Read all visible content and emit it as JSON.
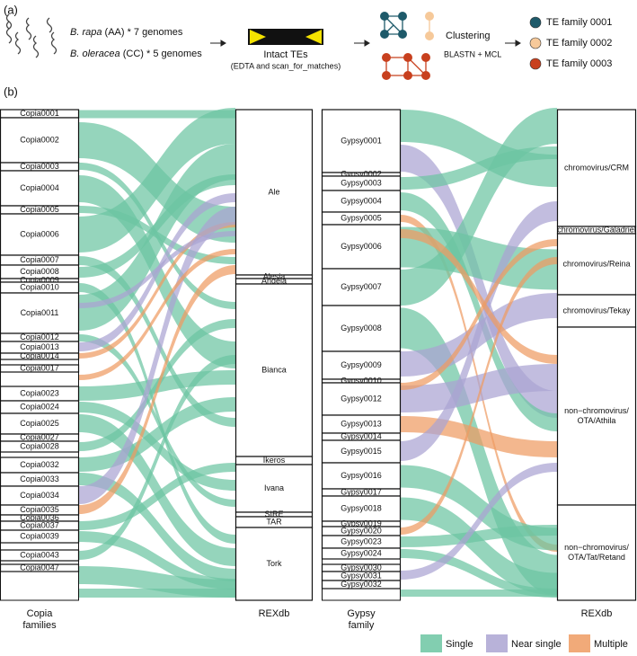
{
  "panel_a": {
    "label": "(a)",
    "genomes": [
      {
        "species": "B. rapa",
        "detail": "(AA) * 7 genomes"
      },
      {
        "species": "B. oleracea",
        "detail": "(CC) * 5 genomes"
      }
    ],
    "step1": {
      "title": "Intact TEs",
      "subtitle": "(EDTA and scan_for_matches)"
    },
    "step2": {
      "title": "Clustering",
      "subtitle": "BLASTN + MCL"
    },
    "families": [
      {
        "name": "TE family 0001",
        "color": "#1e5a6a"
      },
      {
        "name": "TE family 0002",
        "color": "#f6c99a"
      },
      {
        "name": "TE family 0003",
        "color": "#c8401e"
      }
    ]
  },
  "panel_b": {
    "label": "(b)",
    "columns": [
      {
        "axis_label": [
          "Copia",
          "families"
        ],
        "nodes": [
          "Copia0001",
          "Copia0002",
          "Copia0003",
          "Copia0004",
          "Copia0005",
          "Copia0006",
          "Copia0007",
          "Copia0008",
          "Copia0009",
          "Copia0010",
          "Copia0011",
          "Copia0012",
          "Copia0013",
          "Copia0014",
          "Copia0017",
          "Copia0023",
          "Copia0024",
          "Copia0025",
          "Copia0027",
          "Copia0028",
          "Copia0032",
          "Copia0033",
          "Copia0034",
          "Copia0035",
          "Copia0036",
          "Copia0037",
          "Copia0039",
          "Copia0043",
          "Copia0047"
        ]
      },
      {
        "axis_label": [
          "REXdb"
        ],
        "nodes": [
          "Ale",
          "Alesia",
          "Angela",
          "Bianca",
          "Ikeros",
          "Ivana",
          "SIRE",
          "TAR",
          "Tork"
        ]
      },
      {
        "axis_label": [
          "Gypsy",
          "family"
        ],
        "nodes": [
          "Gypsy0001",
          "Gypsy0002",
          "Gypsy0003",
          "Gypsy0004",
          "Gypsy0005",
          "Gypsy0006",
          "Gypsy0007",
          "Gypsy0008",
          "Gypsy0009",
          "Gypsy0010",
          "Gypsy0012",
          "Gypsy0013",
          "Gypsy0014",
          "Gypsy0015",
          "Gypsy0016",
          "Gypsy0017",
          "Gypsy0018",
          "Gypsy0019",
          "Gypsy0020",
          "Gypsy0023",
          "Gypsy0024",
          "Gypsy0030",
          "Gypsy0031",
          "Gypsy0032"
        ]
      },
      {
        "axis_label": [
          "REXdb"
        ],
        "nodes": [
          [
            "chromovirus/CRM"
          ],
          [
            "chromovirus/Galadriel"
          ],
          [
            "chromovirus/Reina"
          ],
          [
            "chromovirus/Tekay"
          ],
          [
            "non−chromovirus/",
            "OTA/Athila"
          ],
          [
            "non−chromovirus/",
            "OTA/Tat/Retand"
          ]
        ]
      }
    ],
    "legend": [
      {
        "name": "Single",
        "color": "#6cc5a2"
      },
      {
        "name": "Near single",
        "color": "#aba4d2"
      },
      {
        "name": "Multiple",
        "color": "#ef9b62"
      }
    ]
  }
}
